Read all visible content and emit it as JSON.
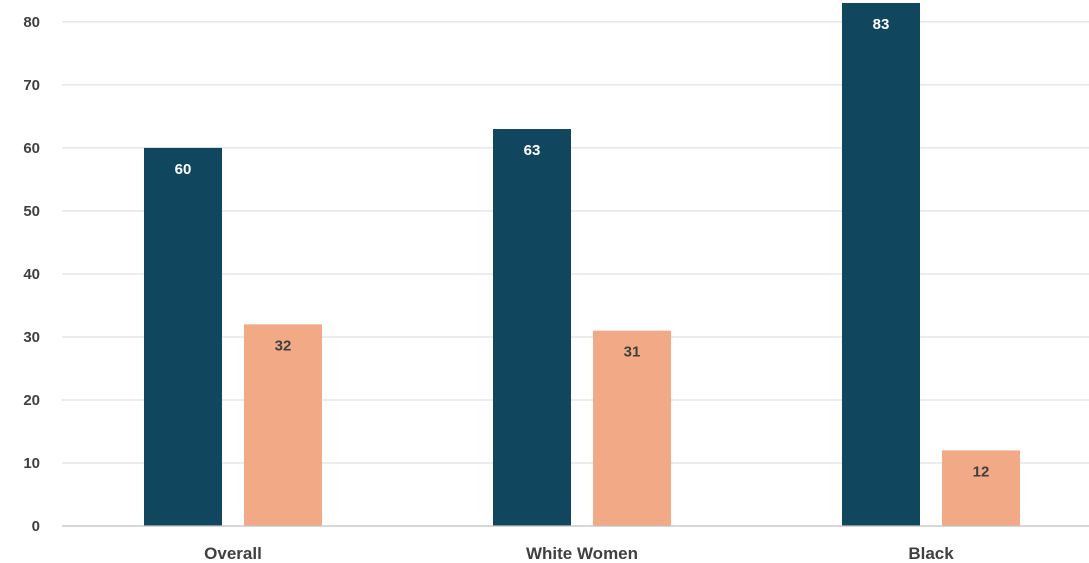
{
  "chart_data": {
    "type": "bar",
    "title": "",
    "xlabel": "",
    "ylabel": "",
    "categories": [
      "Overall",
      "White Women",
      "Black"
    ],
    "series": [
      {
        "color": "#10475f",
        "label_color": "#ffffff",
        "values": [
          60,
          63,
          83
        ]
      },
      {
        "color": "#f2a985",
        "label_color": "#404040",
        "values": [
          32,
          31,
          12
        ]
      }
    ],
    "ylim": [
      0,
      83
    ],
    "yticks": [
      "0",
      "10",
      "20",
      "30",
      "40",
      "50",
      "60",
      "70",
      "80"
    ],
    "grid": true,
    "legend": "none",
    "data_labels": true
  }
}
